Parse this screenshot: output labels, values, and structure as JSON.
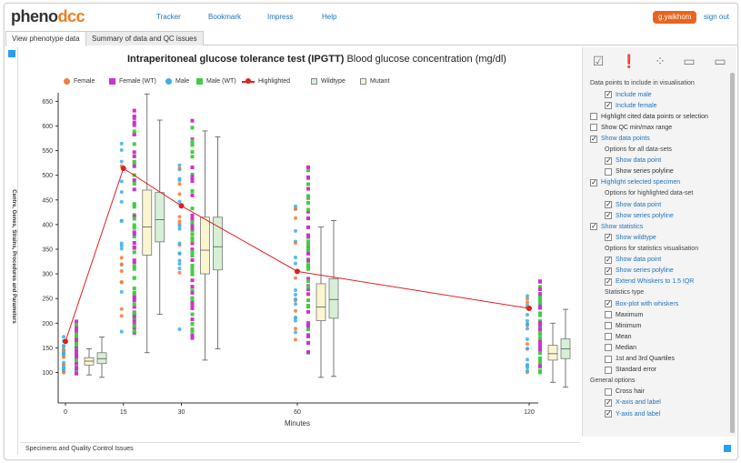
{
  "logo": {
    "part1": "pheno",
    "part2": "dcc"
  },
  "nav": {
    "tracker": "Tracker",
    "bookmark": "Bookmark",
    "impress": "Impress",
    "help": "Help"
  },
  "user": {
    "name": "g.yaikhom",
    "signout": "sign out"
  },
  "tabs": [
    "View phenotype data",
    "Summary of data and QC issues"
  ],
  "sidebar_label": "Centre, Genes, Strains, Procedures and Parameters",
  "chart": {
    "title": "Intraperitoneal glucose tolerance test (IPGTT)",
    "subtitle": "Blood glucose concentration (mg/dl)"
  },
  "legend": [
    "Female",
    "Female (WT)",
    "Male",
    "Male (WT)",
    "Highlighted",
    "Wildtype",
    "Mutant"
  ],
  "colors": {
    "female": "#f07d3a",
    "female_wt": "#cc33cc",
    "male": "#3ab0e8",
    "male_wt": "#44cc44",
    "highlighted": "#e02020",
    "wildtype": "#d6f0d6",
    "mutant": "#fbf6cf"
  },
  "chart_data": {
    "type": "scatter",
    "xlabel": "Minutes",
    "ylabel": "",
    "x_ticks": [
      0,
      15,
      30,
      60,
      120
    ],
    "y_ticks": [
      100,
      150,
      200,
      250,
      300,
      350,
      400,
      450,
      500,
      550,
      600,
      650
    ],
    "xlim": [
      0,
      120
    ],
    "ylim": [
      75,
      660
    ],
    "highlighted_series": {
      "name": "Highlighted",
      "x": [
        0,
        15,
        30,
        60,
        120
      ],
      "y": [
        163,
        514,
        438,
        305,
        230
      ]
    },
    "mutant_boxes": [
      {
        "x": 0,
        "q1": 115,
        "median": 123,
        "q3": 130,
        "whisker_low": 95,
        "whisker_high": 148
      },
      {
        "x": 15,
        "q1": 338,
        "median": 395,
        "q3": 470,
        "whisker_low": 140,
        "whisker_high": 665
      },
      {
        "x": 30,
        "q1": 300,
        "median": 348,
        "q3": 415,
        "whisker_low": 125,
        "whisker_high": 590
      },
      {
        "x": 60,
        "q1": 205,
        "median": 233,
        "q3": 280,
        "whisker_low": 90,
        "whisker_high": 395
      },
      {
        "x": 120,
        "q1": 125,
        "median": 138,
        "q3": 155,
        "whisker_low": 80,
        "whisker_high": 200
      }
    ],
    "wildtype_boxes": [
      {
        "x": 0,
        "q1": 118,
        "median": 128,
        "q3": 140,
        "whisker_low": 90,
        "whisker_high": 172
      },
      {
        "x": 15,
        "q1": 365,
        "median": 410,
        "q3": 465,
        "whisker_low": 218,
        "whisker_high": 612
      },
      {
        "x": 30,
        "q1": 308,
        "median": 355,
        "q3": 415,
        "whisker_low": 148,
        "whisker_high": 578
      },
      {
        "x": 60,
        "q1": 210,
        "median": 248,
        "q3": 290,
        "whisker_low": 92,
        "whisker_high": 408
      },
      {
        "x": 120,
        "q1": 128,
        "median": 148,
        "q3": 168,
        "whisker_low": 70,
        "whisker_high": 228
      }
    ]
  },
  "panel": {
    "sections": [
      {
        "kind": "head",
        "text": "Data points to include in visualisation"
      },
      {
        "kind": "opt",
        "indent": 1,
        "checked": true,
        "link": true,
        "text": "Include male"
      },
      {
        "kind": "opt",
        "indent": 1,
        "checked": true,
        "link": true,
        "text": "Include female"
      },
      {
        "kind": "opt",
        "indent": 0,
        "checked": false,
        "link": false,
        "text": "Highlight cited data points or selection"
      },
      {
        "kind": "opt",
        "indent": 0,
        "checked": false,
        "link": false,
        "text": "Show QC min/max range"
      },
      {
        "kind": "opt",
        "indent": 0,
        "checked": true,
        "link": true,
        "text": "Show data points"
      },
      {
        "kind": "head",
        "indent": 1,
        "text": "Options for all data-sets"
      },
      {
        "kind": "opt",
        "indent": 1,
        "checked": true,
        "link": true,
        "text": "Show data point"
      },
      {
        "kind": "opt",
        "indent": 1,
        "checked": false,
        "link": false,
        "text": "Show series polyline"
      },
      {
        "kind": "opt",
        "indent": 0,
        "checked": true,
        "link": true,
        "text": "Highlight selected specimen"
      },
      {
        "kind": "head",
        "indent": 1,
        "text": "Options for highlighted data-set"
      },
      {
        "kind": "opt",
        "indent": 1,
        "checked": true,
        "link": true,
        "text": "Show data point"
      },
      {
        "kind": "opt",
        "indent": 1,
        "checked": true,
        "link": true,
        "text": "Show series polyline"
      },
      {
        "kind": "opt",
        "indent": 0,
        "checked": true,
        "link": true,
        "text": "Show statistics"
      },
      {
        "kind": "opt",
        "indent": 1,
        "checked": true,
        "link": true,
        "text": "Show wildtype"
      },
      {
        "kind": "head",
        "indent": 1,
        "text": "Options for statistics visualisation"
      },
      {
        "kind": "opt",
        "indent": 1,
        "checked": true,
        "link": true,
        "text": "Show data point"
      },
      {
        "kind": "opt",
        "indent": 1,
        "checked": true,
        "link": true,
        "text": "Show series polyline"
      },
      {
        "kind": "opt",
        "indent": 1,
        "checked": true,
        "link": true,
        "text": "Extend Whiskers to 1.5 IQR"
      },
      {
        "kind": "head",
        "indent": 1,
        "text": "Statistics type"
      },
      {
        "kind": "opt",
        "indent": 1,
        "checked": true,
        "link": true,
        "text": "Box-plot with whiskers"
      },
      {
        "kind": "opt",
        "indent": 1,
        "checked": false,
        "link": false,
        "text": "Maximum"
      },
      {
        "kind": "opt",
        "indent": 1,
        "checked": false,
        "link": false,
        "text": "Minimum"
      },
      {
        "kind": "opt",
        "indent": 1,
        "checked": false,
        "link": false,
        "text": "Mean"
      },
      {
        "kind": "opt",
        "indent": 1,
        "checked": false,
        "link": false,
        "text": "Median"
      },
      {
        "kind": "opt",
        "indent": 1,
        "checked": false,
        "link": false,
        "text": "1st and 3rd Quartiles"
      },
      {
        "kind": "opt",
        "indent": 1,
        "checked": false,
        "link": false,
        "text": "Standard error"
      },
      {
        "kind": "head",
        "indent": 0,
        "text": "General options"
      },
      {
        "kind": "opt",
        "indent": 1,
        "checked": false,
        "link": false,
        "text": "Cross hair"
      },
      {
        "kind": "opt",
        "indent": 1,
        "checked": true,
        "link": true,
        "text": "X-axis and label"
      },
      {
        "kind": "opt",
        "indent": 1,
        "checked": true,
        "link": true,
        "text": "Y-axis and label"
      }
    ]
  },
  "footer": "Specimens and Quality Control Issues"
}
